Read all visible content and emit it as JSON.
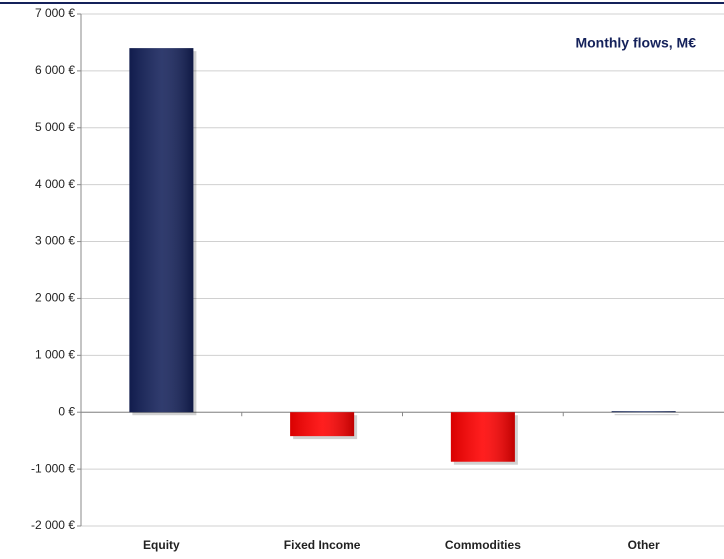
{
  "chart_data": {
    "type": "bar",
    "title": "Monthly flows, M€",
    "categories": [
      "Equity",
      "Fixed Income",
      "Commodities",
      "Other"
    ],
    "values": [
      6400,
      -420,
      -870,
      20
    ],
    "colors": [
      "#14215a",
      "#ff0000",
      "#ff0000",
      "#3a4a78"
    ],
    "ylim": [
      -2000,
      7000
    ],
    "yticks": [
      {
        "value": -2000,
        "label": "-2 000 €"
      },
      {
        "value": -1000,
        "label": "-1 000 €"
      },
      {
        "value": 0,
        "label": "0 €"
      },
      {
        "value": 1000,
        "label": "1 000 €"
      },
      {
        "value": 2000,
        "label": "2 000 €"
      },
      {
        "value": 3000,
        "label": "3 000 €"
      },
      {
        "value": 4000,
        "label": "4 000 €"
      },
      {
        "value": 5000,
        "label": "5 000 €"
      },
      {
        "value": 6000,
        "label": "6 000 €"
      },
      {
        "value": 7000,
        "label": "7 000 €"
      }
    ],
    "grid": true
  }
}
